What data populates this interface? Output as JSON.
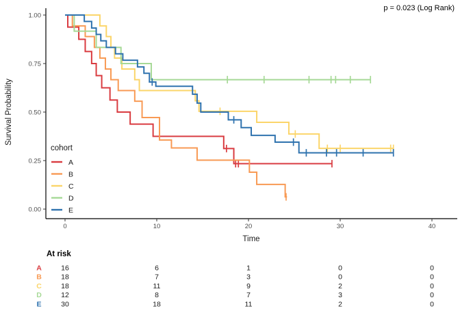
{
  "annotation": {
    "p_value": "p = 0.023 (Log Rank)"
  },
  "chart_data": {
    "type": "line",
    "subtype": "kaplan-meier-step",
    "title": "",
    "xlabel": "Time",
    "ylabel": "Survival Probability",
    "xlim": [
      0,
      40
    ],
    "ylim": [
      0.0,
      1.0
    ],
    "x_ticks": [
      "0",
      "10",
      "20",
      "30",
      "40"
    ],
    "y_ticks": [
      "0.00",
      "0.25",
      "0.50",
      "0.75",
      "1.00"
    ],
    "grid": false,
    "legend_title": "cohort",
    "legend_position": "inside-left-bottom",
    "series": [
      {
        "name": "A",
        "color": "#D93B40",
        "steps": [
          [
            0,
            1.0
          ],
          [
            0.3,
            0.938
          ],
          [
            1.5,
            0.875
          ],
          [
            2.2,
            0.812
          ],
          [
            2.9,
            0.75
          ],
          [
            3.4,
            0.688
          ],
          [
            4.0,
            0.625
          ],
          [
            4.9,
            0.562
          ],
          [
            5.7,
            0.5
          ],
          [
            7.1,
            0.438
          ],
          [
            9.6,
            0.375
          ],
          [
            17.3,
            0.312
          ],
          [
            18.4,
            0.234
          ]
        ],
        "end_time": 29.1,
        "censors": [
          [
            17.6,
            0.312
          ],
          [
            18.6,
            0.234
          ],
          [
            18.9,
            0.234
          ],
          [
            29.1,
            0.234
          ]
        ]
      },
      {
        "name": "B",
        "color": "#F89A54",
        "steps": [
          [
            0,
            1.0
          ],
          [
            0.8,
            0.944
          ],
          [
            2.2,
            0.889
          ],
          [
            3.2,
            0.833
          ],
          [
            3.8,
            0.778
          ],
          [
            4.4,
            0.722
          ],
          [
            5.0,
            0.667
          ],
          [
            5.8,
            0.611
          ],
          [
            7.6,
            0.556
          ],
          [
            8.4,
            0.472
          ],
          [
            10.3,
            0.356
          ],
          [
            11.6,
            0.315
          ],
          [
            14.4,
            0.252
          ],
          [
            20.1,
            0.19
          ],
          [
            20.9,
            0.127
          ],
          [
            24.0,
            0.063
          ]
        ],
        "end_time": 24.2,
        "censors": [
          [
            24.1,
            0.063
          ]
        ]
      },
      {
        "name": "C",
        "color": "#FBD56A",
        "steps": [
          [
            0,
            1.0
          ],
          [
            3.8,
            0.944
          ],
          [
            4.5,
            0.889
          ],
          [
            5.0,
            0.833
          ],
          [
            5.4,
            0.778
          ],
          [
            6.2,
            0.722
          ],
          [
            7.6,
            0.667
          ],
          [
            8.1,
            0.611
          ],
          [
            14.2,
            0.558
          ],
          [
            14.6,
            0.504
          ],
          [
            20.9,
            0.447
          ],
          [
            24.4,
            0.387
          ],
          [
            27.7,
            0.313
          ]
        ],
        "end_time": 35.8,
        "censors": [
          [
            16.9,
            0.504
          ],
          [
            25.1,
            0.387
          ],
          [
            28.6,
            0.313
          ],
          [
            30.0,
            0.313
          ],
          [
            35.5,
            0.313
          ],
          [
            35.8,
            0.313
          ]
        ]
      },
      {
        "name": "D",
        "color": "#A6D996",
        "steps": [
          [
            0,
            1.0
          ],
          [
            1.0,
            0.917
          ],
          [
            3.4,
            0.833
          ],
          [
            6.1,
            0.75
          ],
          [
            9.4,
            0.667
          ]
        ],
        "end_time": 33.3,
        "censors": [
          [
            17.7,
            0.667
          ],
          [
            21.7,
            0.667
          ],
          [
            26.6,
            0.667
          ],
          [
            29.0,
            0.667
          ],
          [
            29.5,
            0.667
          ],
          [
            31.1,
            0.667
          ],
          [
            33.3,
            0.667
          ]
        ]
      },
      {
        "name": "E",
        "color": "#2E72AE",
        "steps": [
          [
            0,
            1.0
          ],
          [
            2.1,
            0.967
          ],
          [
            2.9,
            0.933
          ],
          [
            3.4,
            0.9
          ],
          [
            3.9,
            0.867
          ],
          [
            4.5,
            0.833
          ],
          [
            5.5,
            0.8
          ],
          [
            6.3,
            0.767
          ],
          [
            7.9,
            0.733
          ],
          [
            8.6,
            0.7
          ],
          [
            9.2,
            0.655
          ],
          [
            9.9,
            0.633
          ],
          [
            13.9,
            0.592
          ],
          [
            14.4,
            0.546
          ],
          [
            14.8,
            0.5
          ],
          [
            17.8,
            0.46
          ],
          [
            19.2,
            0.42
          ],
          [
            20.3,
            0.38
          ],
          [
            22.9,
            0.345
          ],
          [
            25.5,
            0.29
          ]
        ],
        "end_time": 35.8,
        "censors": [
          [
            9.5,
            0.655
          ],
          [
            18.4,
            0.46
          ],
          [
            24.9,
            0.345
          ],
          [
            26.3,
            0.29
          ],
          [
            28.5,
            0.29
          ],
          [
            29.6,
            0.29
          ],
          [
            32.5,
            0.29
          ],
          [
            35.8,
            0.29
          ]
        ]
      }
    ]
  },
  "at_risk": {
    "title": "At risk",
    "times": [
      0,
      10,
      20,
      30,
      40
    ],
    "rows": [
      {
        "name": "A",
        "counts": [
          "16",
          "6",
          "1",
          "0",
          "0"
        ]
      },
      {
        "name": "B",
        "counts": [
          "18",
          "7",
          "3",
          "0",
          "0"
        ]
      },
      {
        "name": "C",
        "counts": [
          "18",
          "11",
          "9",
          "2",
          "0"
        ]
      },
      {
        "name": "D",
        "counts": [
          "12",
          "8",
          "7",
          "3",
          "0"
        ]
      },
      {
        "name": "E",
        "counts": [
          "30",
          "18",
          "11",
          "2",
          "0"
        ]
      }
    ]
  }
}
